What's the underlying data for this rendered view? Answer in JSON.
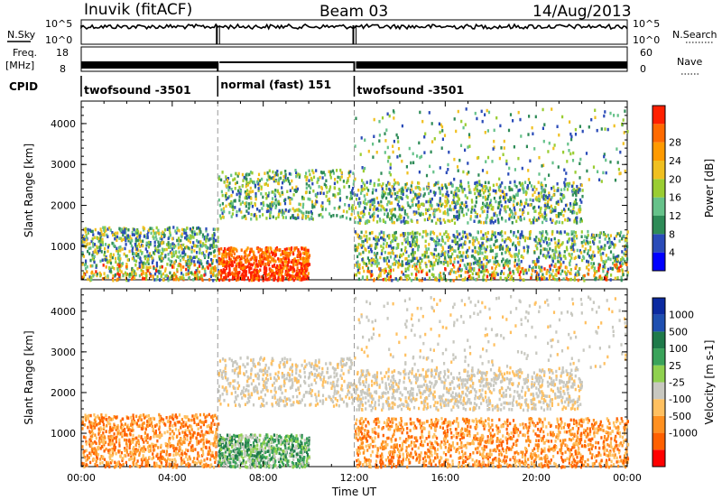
{
  "header": {
    "station": "Inuvik (fitACF)",
    "beam": "Beam 03",
    "date": "14/Aug/2013"
  },
  "noise_panel": {
    "left_label": "N.Sky",
    "right_label": "N.Search",
    "left_ticks": [
      "10^5",
      "10^0"
    ],
    "right_ticks": [
      "10^5",
      "10^0"
    ]
  },
  "freq_panel": {
    "left_label_1": "Freq.",
    "left_label_2": "[MHz]",
    "right_label": "Nave",
    "left_ticks": [
      "18",
      "8"
    ],
    "right_ticks": [
      "60",
      "0"
    ]
  },
  "cpid": {
    "label": "CPID",
    "segments": [
      {
        "name": "twofsound -3501",
        "start_hour": 0,
        "end_hour": 6
      },
      {
        "name": "normal (fast) 151",
        "start_hour": 6,
        "end_hour": 12
      },
      {
        "name": "twofsound -3501",
        "start_hour": 12,
        "end_hour": 24
      }
    ]
  },
  "chart_data": [
    {
      "type": "heatmap",
      "name": "power",
      "ylabel": "Slant Range [km]",
      "yticks": [
        1000,
        2000,
        3000,
        4000
      ],
      "ylim": [
        180,
        4550
      ],
      "xlim": [
        0,
        24
      ],
      "colorbar_label": "Power [dB]",
      "colorbar_ticks": [
        "4",
        "8",
        "12",
        "16",
        "20",
        "24",
        "28"
      ],
      "colorbar_colors": [
        "#0000ff",
        "#2a4bb8",
        "#2e8b57",
        "#66c28a",
        "#9acd32",
        "#f0c020",
        "#ff9a00",
        "#ff6a00",
        "#ff2000"
      ]
    },
    {
      "type": "heatmap",
      "name": "velocity",
      "ylabel": "Slant Range [km]",
      "yticks": [
        1000,
        2000,
        3000,
        4000
      ],
      "ylim": [
        180,
        4550
      ],
      "xlim": [
        0,
        24
      ],
      "xlabel": "Time UT",
      "xticks": [
        "00:00",
        "04:00",
        "08:00",
        "12:00",
        "16:00",
        "20:00",
        "00:00"
      ],
      "colorbar_label": "Velocity [m s-1]",
      "colorbar_ticks": [
        "1000",
        "500",
        "100",
        "25",
        "-25",
        "-100",
        "-500",
        "-1000"
      ],
      "colorbar_colors": [
        "#0b2aa0",
        "#1e4fb0",
        "#1f7a4a",
        "#3aa35a",
        "#8fd14f",
        "#c8c8c0",
        "#ffc060",
        "#ff9020",
        "#ff6000",
        "#ff0000"
      ]
    }
  ]
}
